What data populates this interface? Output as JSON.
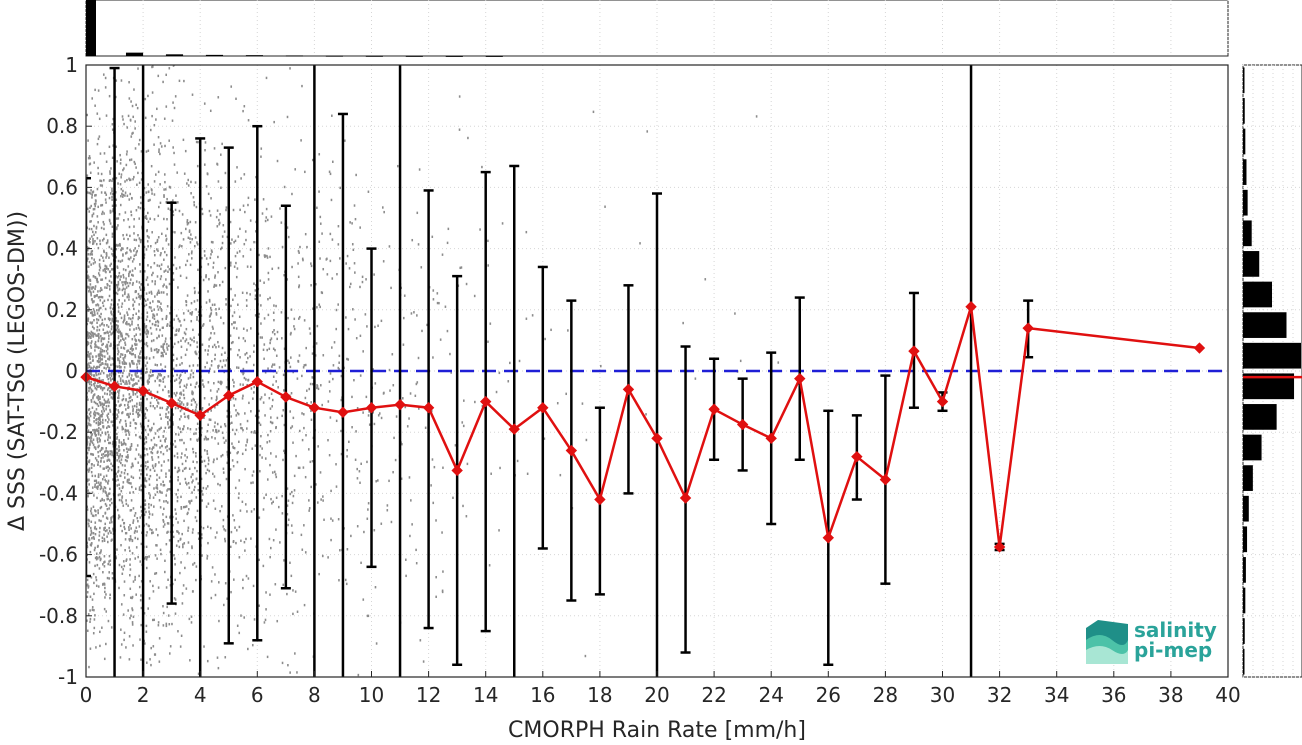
{
  "chart_data": {
    "type": "scatter",
    "xlabel": "CMORPH Rain Rate [mm/h]",
    "ylabel": "Δ SSS (SAT-TSG (LEGOS-DM))",
    "xlim": [
      0,
      40
    ],
    "ylim": [
      -1,
      1
    ],
    "x_ticks": [
      0,
      2,
      4,
      6,
      8,
      10,
      12,
      14,
      16,
      18,
      20,
      22,
      24,
      26,
      28,
      30,
      32,
      34,
      36,
      38,
      40
    ],
    "y_ticks": [
      -1,
      -0.8,
      -0.6,
      -0.4,
      -0.2,
      0,
      0.2,
      0.4,
      0.6,
      0.8,
      1
    ],
    "y_tick_labels": [
      "-1",
      "-0.8",
      "-0.6",
      "-0.4",
      "-0.2",
      "0",
      "0.2",
      "0.4",
      "0.6",
      "0.8",
      "1"
    ],
    "grid": true,
    "zero_line": {
      "y": 0,
      "color": "#1f1fd6",
      "style": "dashed"
    },
    "mean_series": {
      "color": "#e01010",
      "points": [
        {
          "x": 0,
          "y": -0.02,
          "lo": -0.67,
          "hi": 0.63
        },
        {
          "x": 1,
          "y": -0.05,
          "lo": -1.05,
          "hi": 0.99
        },
        {
          "x": 2,
          "y": -0.065,
          "lo": -1.05,
          "hi": 1.05
        },
        {
          "x": 3,
          "y": -0.105,
          "lo": -0.76,
          "hi": 0.55
        },
        {
          "x": 4,
          "y": -0.145,
          "lo": -1.05,
          "hi": 0.76
        },
        {
          "x": 5,
          "y": -0.08,
          "lo": -0.89,
          "hi": 0.73
        },
        {
          "x": 6,
          "y": -0.035,
          "lo": -0.88,
          "hi": 0.8
        },
        {
          "x": 7,
          "y": -0.085,
          "lo": -0.71,
          "hi": 0.54
        },
        {
          "x": 8,
          "y": -0.12,
          "lo": -1.05,
          "hi": 1.05
        },
        {
          "x": 9,
          "y": -0.135,
          "lo": -1.05,
          "hi": 0.84
        },
        {
          "x": 10,
          "y": -0.12,
          "lo": -0.64,
          "hi": 0.4
        },
        {
          "x": 11,
          "y": -0.11,
          "lo": -1.05,
          "hi": 1.05
        },
        {
          "x": 12,
          "y": -0.12,
          "lo": -0.84,
          "hi": 0.59
        },
        {
          "x": 13,
          "y": -0.325,
          "lo": -0.96,
          "hi": 0.31
        },
        {
          "x": 14,
          "y": -0.1,
          "lo": -0.85,
          "hi": 0.65
        },
        {
          "x": 15,
          "y": -0.19,
          "lo": -1.05,
          "hi": 0.67
        },
        {
          "x": 16,
          "y": -0.12,
          "lo": -0.58,
          "hi": 0.34
        },
        {
          "x": 17,
          "y": -0.26,
          "lo": -0.75,
          "hi": 0.23
        },
        {
          "x": 18,
          "y": -0.42,
          "lo": -0.73,
          "hi": -0.12
        },
        {
          "x": 19,
          "y": -0.06,
          "lo": -0.4,
          "hi": 0.28
        },
        {
          "x": 20,
          "y": -0.22,
          "lo": -1.05,
          "hi": 0.58
        },
        {
          "x": 21,
          "y": -0.415,
          "lo": -0.92,
          "hi": 0.08
        },
        {
          "x": 22,
          "y": -0.125,
          "lo": -0.29,
          "hi": 0.04
        },
        {
          "x": 23,
          "y": -0.175,
          "lo": -0.325,
          "hi": -0.025
        },
        {
          "x": 24,
          "y": -0.22,
          "lo": -0.5,
          "hi": 0.06
        },
        {
          "x": 25,
          "y": -0.025,
          "lo": -0.29,
          "hi": 0.24
        },
        {
          "x": 26,
          "y": -0.545,
          "lo": -0.96,
          "hi": -0.13
        },
        {
          "x": 27,
          "y": -0.28,
          "lo": -0.42,
          "hi": -0.145
        },
        {
          "x": 28,
          "y": -0.355,
          "lo": -0.695,
          "hi": -0.015
        },
        {
          "x": 29,
          "y": 0.065,
          "lo": -0.12,
          "hi": 0.255
        },
        {
          "x": 30,
          "y": -0.1,
          "lo": -0.13,
          "hi": -0.07
        },
        {
          "x": 31,
          "y": 0.21,
          "lo": -1.05,
          "hi": 1.05
        },
        {
          "x": 32,
          "y": -0.575,
          "lo": -0.585,
          "hi": -0.565
        },
        {
          "x": 33,
          "y": 0.14,
          "lo": 0.045,
          "hi": 0.23
        },
        {
          "x": 39,
          "y": 0.075,
          "lo": 0.075,
          "hi": 0.075
        }
      ]
    },
    "scatter_color": "#8c8c8c",
    "x_histogram": [
      1.0,
      0.06,
      0.03,
      0.02,
      0.015,
      0.01,
      0.006,
      0.004,
      0.003,
      0.002,
      0.002
    ],
    "y_histogram": {
      "bins": [
        -0.95,
        -0.85,
        -0.75,
        -0.65,
        -0.55,
        -0.45,
        -0.35,
        -0.25,
        -0.15,
        -0.05,
        0.05,
        0.15,
        0.25,
        0.35,
        0.45,
        0.55,
        0.65,
        0.75,
        0.85,
        0.95
      ],
      "counts": [
        0.02,
        0.03,
        0.04,
        0.05,
        0.07,
        0.1,
        0.17,
        0.32,
        0.58,
        0.88,
        1.0,
        0.75,
        0.5,
        0.28,
        0.15,
        0.08,
        0.06,
        0.04,
        0.03,
        0.02
      ],
      "mean_line_color": "#e01010"
    }
  },
  "logo": {
    "line1": "salinity",
    "line2": "pi-mep"
  }
}
